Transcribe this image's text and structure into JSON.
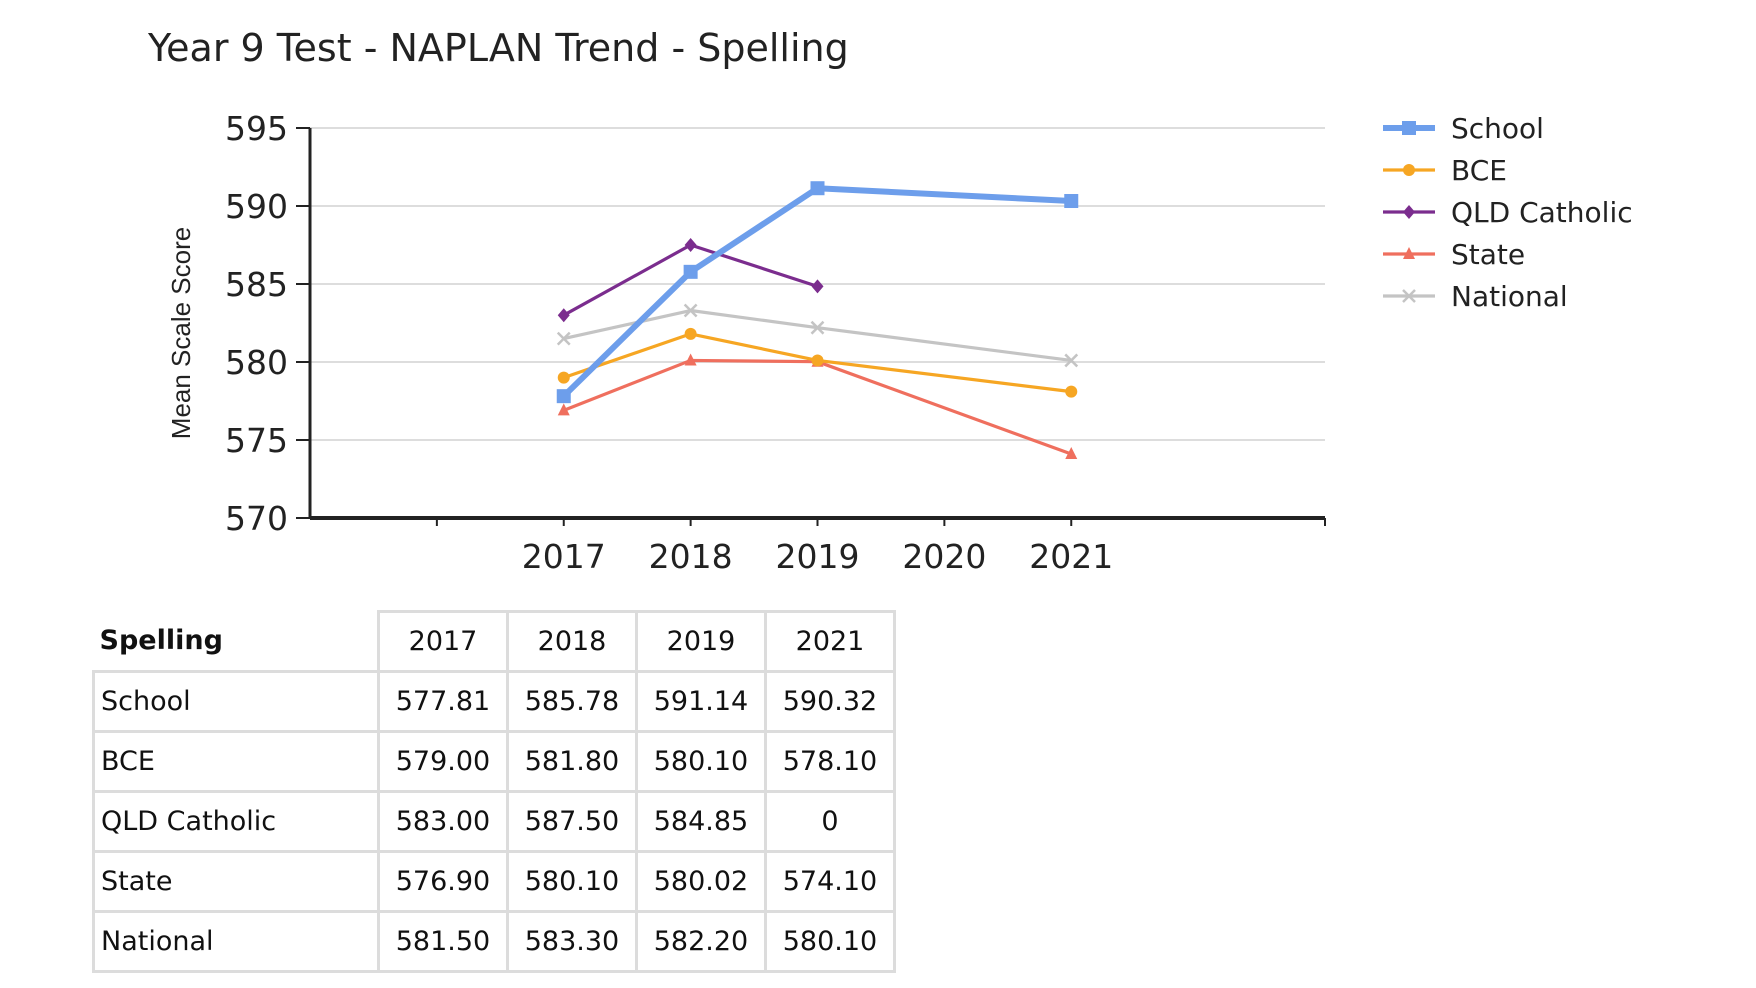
{
  "chart_data": {
    "type": "line",
    "title": "Year 9 Test - NAPLAN Trend - Spelling",
    "xlabel": "",
    "ylabel": "Mean Scale Score",
    "x": [
      2017,
      2018,
      2019,
      2020,
      2021
    ],
    "ylim": [
      570,
      595
    ],
    "yticks": [
      570,
      575,
      580,
      585,
      590,
      595
    ],
    "grid": true,
    "legend": "right",
    "series": [
      {
        "name": "School",
        "color": "#6d9eeb",
        "marker": "square",
        "values": [
          577.81,
          585.78,
          591.14,
          null,
          590.32
        ]
      },
      {
        "name": "BCE",
        "color": "#f6a623",
        "marker": "circle",
        "values": [
          579.0,
          581.8,
          580.1,
          null,
          578.1
        ]
      },
      {
        "name": "QLD Catholic",
        "color": "#7b2d8e",
        "marker": "diamond",
        "values": [
          583.0,
          587.5,
          584.85,
          null,
          null
        ]
      },
      {
        "name": "State",
        "color": "#ef6f5e",
        "marker": "triangle",
        "values": [
          576.9,
          580.1,
          580.02,
          null,
          574.1
        ]
      },
      {
        "name": "National",
        "color": "#c4c4c4",
        "marker": "cross",
        "values": [
          581.5,
          583.3,
          582.2,
          null,
          580.1
        ]
      }
    ]
  },
  "table": {
    "corner": "Spelling",
    "columns": [
      "2017",
      "2018",
      "2019",
      "2021"
    ],
    "rows": [
      {
        "name": "School",
        "values": [
          "577.81",
          "585.78",
          "591.14",
          "590.32"
        ]
      },
      {
        "name": "BCE",
        "values": [
          "579.00",
          "581.80",
          "580.10",
          "578.10"
        ]
      },
      {
        "name": "QLD Catholic",
        "values": [
          "583.00",
          "587.50",
          "584.85",
          "0"
        ]
      },
      {
        "name": "State",
        "values": [
          "576.90",
          "580.10",
          "580.02",
          "574.10"
        ]
      },
      {
        "name": "National",
        "values": [
          "581.50",
          "583.30",
          "582.20",
          "580.10"
        ]
      }
    ]
  }
}
